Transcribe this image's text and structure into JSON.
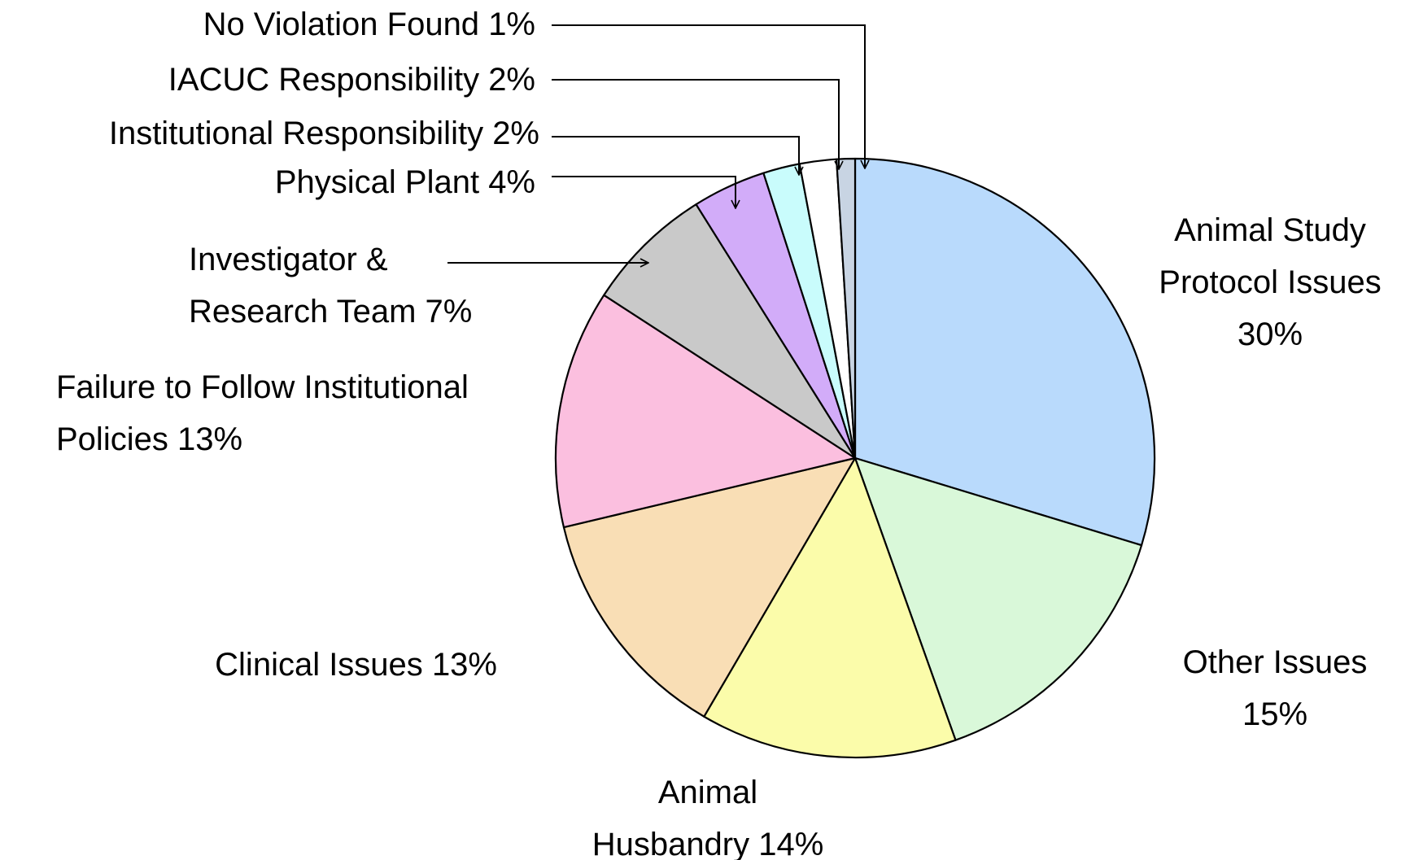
{
  "chart_data": {
    "type": "pie",
    "categories": [
      "Animal Study Protocol Issues",
      "Other Issues",
      "Animal Husbandry",
      "Clinical Issues",
      "Failure to Follow Institutional Policies",
      "Investigator & Research Team",
      "Physical Plant",
      "Institutional Responsibility",
      "IACUC Responsibility",
      "No Violation Found"
    ],
    "values": [
      30,
      15,
      14,
      13,
      13,
      7,
      4,
      2,
      2,
      1
    ],
    "value_labels": [
      "30%",
      "15%",
      "14%",
      "13%",
      "13%",
      "7%",
      "4%",
      "2%",
      "2%",
      "1%"
    ],
    "colors": [
      "#b9dafc",
      "#d9f8d9",
      "#fbfcaa",
      "#f9deb5",
      "#fbbfdf",
      "#c9c9c9",
      "#d2acf9",
      "#c9fcfc",
      "#ffffff",
      "#c8d4e3"
    ]
  }
}
